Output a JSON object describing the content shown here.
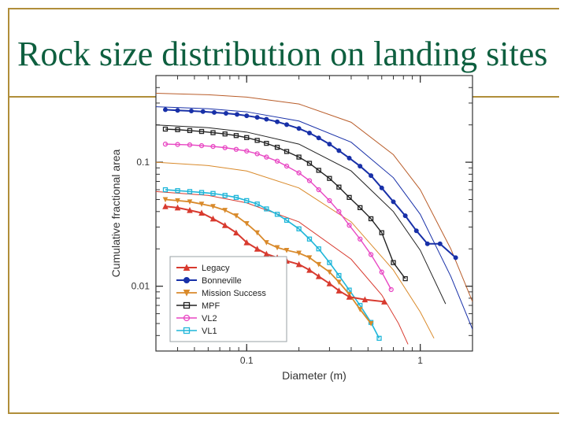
{
  "slide": {
    "title": "Rock size distribution on landing sites",
    "title_color": "#0e5f3f",
    "title_fontsize": 44,
    "rule_color": "#b08e3a",
    "background": "#ffffff"
  },
  "chart": {
    "type": "line",
    "xlabel": "Diameter (m)",
    "ylabel": "Cumulative fractional area",
    "label_fontsize": 14,
    "tick_fontsize": 12,
    "xscale": "log",
    "yscale": "log",
    "xlim": [
      0.03,
      2.0
    ],
    "ylim": [
      0.003,
      0.5
    ],
    "xticks": [
      0.1,
      1
    ],
    "yticks": [
      0.01,
      0.1
    ],
    "xtick_labels": [
      "0.1",
      "1"
    ],
    "ytick_labels": [
      "0.01",
      "0.1"
    ],
    "axis_color": "#333333",
    "grid": false,
    "background_color": "#ffffff",
    "legend": {
      "position": "lower-left-inside",
      "border_color": "#9aa0a6",
      "bg_color": "#ffffff",
      "fontsize": 11,
      "items": [
        {
          "label": "Legacy",
          "color": "#d83a2f",
          "marker": "triangle-up",
          "line_width": 2.0
        },
        {
          "label": "Bonneville",
          "color": "#1830a8",
          "marker": "circle-filled",
          "line_width": 2.0
        },
        {
          "label": "Mission Success",
          "color": "#d98a2b",
          "marker": "triangle-down",
          "line_width": 1.8
        },
        {
          "label": "MPF",
          "color": "#222222",
          "marker": "square-open",
          "line_width": 1.4
        },
        {
          "label": "VL2",
          "color": "#e847c3",
          "marker": "circle-open",
          "line_width": 1.4
        },
        {
          "label": "VL1",
          "color": "#1fb6d9",
          "marker": "square-open",
          "line_width": 1.6
        }
      ]
    },
    "smooth_curves": [
      {
        "color": "#b95d2a",
        "width": 1.0,
        "points": [
          [
            0.03,
            0.36
          ],
          [
            0.06,
            0.35
          ],
          [
            0.1,
            0.335
          ],
          [
            0.2,
            0.295
          ],
          [
            0.4,
            0.21
          ],
          [
            0.7,
            0.115
          ],
          [
            1.0,
            0.06
          ],
          [
            1.5,
            0.02
          ],
          [
            2.0,
            0.0075
          ]
        ]
      },
      {
        "color": "#1830a8",
        "width": 1.0,
        "points": [
          [
            0.03,
            0.28
          ],
          [
            0.06,
            0.27
          ],
          [
            0.1,
            0.255
          ],
          [
            0.2,
            0.215
          ],
          [
            0.4,
            0.145
          ],
          [
            0.7,
            0.075
          ],
          [
            1.0,
            0.038
          ],
          [
            1.5,
            0.012
          ],
          [
            2.0,
            0.0045
          ]
        ]
      },
      {
        "color": "#222222",
        "width": 1.0,
        "points": [
          [
            0.03,
            0.2
          ],
          [
            0.06,
            0.19
          ],
          [
            0.1,
            0.175
          ],
          [
            0.2,
            0.14
          ],
          [
            0.4,
            0.085
          ],
          [
            0.7,
            0.04
          ],
          [
            1.0,
            0.0195
          ],
          [
            1.4,
            0.0072
          ]
        ]
      },
      {
        "color": "#d98a2b",
        "width": 1.0,
        "points": [
          [
            0.03,
            0.1
          ],
          [
            0.06,
            0.094
          ],
          [
            0.1,
            0.085
          ],
          [
            0.2,
            0.062
          ],
          [
            0.4,
            0.033
          ],
          [
            0.7,
            0.0135
          ],
          [
            1.0,
            0.0062
          ],
          [
            1.2,
            0.0038
          ]
        ]
      },
      {
        "color": "#d83a2f",
        "width": 1.0,
        "points": [
          [
            0.03,
            0.058
          ],
          [
            0.06,
            0.054
          ],
          [
            0.1,
            0.047
          ],
          [
            0.2,
            0.033
          ],
          [
            0.4,
            0.0165
          ],
          [
            0.6,
            0.0085
          ],
          [
            0.75,
            0.005
          ],
          [
            0.85,
            0.0034
          ]
        ]
      }
    ],
    "series": [
      {
        "name": "Bonneville",
        "color": "#1830a8",
        "marker": "circle-filled",
        "marker_size": 5,
        "line_width": 2.0,
        "data": [
          [
            0.034,
            0.265
          ],
          [
            0.04,
            0.262
          ],
          [
            0.048,
            0.259
          ],
          [
            0.056,
            0.256
          ],
          [
            0.065,
            0.252
          ],
          [
            0.076,
            0.248
          ],
          [
            0.088,
            0.243
          ],
          [
            0.1,
            0.237
          ],
          [
            0.115,
            0.23
          ],
          [
            0.13,
            0.222
          ],
          [
            0.15,
            0.212
          ],
          [
            0.17,
            0.201
          ],
          [
            0.2,
            0.187
          ],
          [
            0.23,
            0.172
          ],
          [
            0.26,
            0.157
          ],
          [
            0.3,
            0.14
          ],
          [
            0.34,
            0.124
          ],
          [
            0.39,
            0.108
          ],
          [
            0.45,
            0.093
          ],
          [
            0.52,
            0.078
          ],
          [
            0.6,
            0.062
          ],
          [
            0.7,
            0.048
          ],
          [
            0.82,
            0.037
          ],
          [
            0.95,
            0.028
          ],
          [
            1.1,
            0.022
          ],
          [
            1.3,
            0.022
          ],
          [
            1.6,
            0.017
          ]
        ]
      },
      {
        "name": "MPF",
        "color": "#222222",
        "marker": "square-open",
        "marker_size": 5,
        "line_width": 1.4,
        "data": [
          [
            0.034,
            0.185
          ],
          [
            0.04,
            0.183
          ],
          [
            0.047,
            0.18
          ],
          [
            0.055,
            0.177
          ],
          [
            0.064,
            0.173
          ],
          [
            0.075,
            0.169
          ],
          [
            0.087,
            0.164
          ],
          [
            0.1,
            0.158
          ],
          [
            0.115,
            0.15
          ],
          [
            0.13,
            0.142
          ],
          [
            0.15,
            0.132
          ],
          [
            0.17,
            0.122
          ],
          [
            0.2,
            0.11
          ],
          [
            0.23,
            0.098
          ],
          [
            0.26,
            0.086
          ],
          [
            0.3,
            0.074
          ],
          [
            0.34,
            0.063
          ],
          [
            0.39,
            0.052
          ],
          [
            0.45,
            0.043
          ],
          [
            0.52,
            0.035
          ],
          [
            0.6,
            0.027
          ],
          [
            0.7,
            0.0155
          ],
          [
            0.82,
            0.0115
          ]
        ]
      },
      {
        "name": "VL2",
        "color": "#e847c3",
        "marker": "circle-open",
        "marker_size": 5,
        "line_width": 1.4,
        "data": [
          [
            0.034,
            0.14
          ],
          [
            0.04,
            0.139
          ],
          [
            0.047,
            0.138
          ],
          [
            0.055,
            0.136
          ],
          [
            0.064,
            0.134
          ],
          [
            0.075,
            0.131
          ],
          [
            0.087,
            0.127
          ],
          [
            0.1,
            0.123
          ],
          [
            0.115,
            0.117
          ],
          [
            0.13,
            0.11
          ],
          [
            0.15,
            0.102
          ],
          [
            0.17,
            0.093
          ],
          [
            0.2,
            0.082
          ],
          [
            0.23,
            0.071
          ],
          [
            0.26,
            0.06
          ],
          [
            0.3,
            0.049
          ],
          [
            0.34,
            0.04
          ],
          [
            0.39,
            0.031
          ],
          [
            0.45,
            0.024
          ],
          [
            0.52,
            0.018
          ],
          [
            0.6,
            0.013
          ],
          [
            0.68,
            0.0094
          ]
        ]
      },
      {
        "name": "VL1",
        "color": "#1fb6d9",
        "marker": "square-open",
        "marker_size": 5,
        "line_width": 1.6,
        "data": [
          [
            0.034,
            0.06
          ],
          [
            0.04,
            0.059
          ],
          [
            0.047,
            0.058
          ],
          [
            0.055,
            0.057
          ],
          [
            0.064,
            0.056
          ],
          [
            0.075,
            0.054
          ],
          [
            0.087,
            0.052
          ],
          [
            0.1,
            0.049
          ],
          [
            0.115,
            0.046
          ],
          [
            0.13,
            0.042
          ],
          [
            0.15,
            0.038
          ],
          [
            0.17,
            0.034
          ],
          [
            0.2,
            0.029
          ],
          [
            0.23,
            0.024
          ],
          [
            0.26,
            0.02
          ],
          [
            0.3,
            0.0155
          ],
          [
            0.34,
            0.0122
          ],
          [
            0.39,
            0.0093
          ],
          [
            0.45,
            0.007
          ],
          [
            0.52,
            0.0051
          ],
          [
            0.58,
            0.0038
          ]
        ]
      },
      {
        "name": "Mission Success",
        "color": "#d98a2b",
        "marker": "triangle-down",
        "marker_size": 5,
        "line_width": 1.8,
        "data": [
          [
            0.034,
            0.05
          ],
          [
            0.04,
            0.049
          ],
          [
            0.047,
            0.048
          ],
          [
            0.055,
            0.046
          ],
          [
            0.064,
            0.044
          ],
          [
            0.075,
            0.041
          ],
          [
            0.087,
            0.037
          ],
          [
            0.1,
            0.032
          ],
          [
            0.115,
            0.027
          ],
          [
            0.13,
            0.0225
          ],
          [
            0.15,
            0.0205
          ],
          [
            0.17,
            0.0195
          ],
          [
            0.2,
            0.0185
          ],
          [
            0.23,
            0.017
          ],
          [
            0.26,
            0.015
          ],
          [
            0.3,
            0.013
          ],
          [
            0.34,
            0.0108
          ],
          [
            0.39,
            0.0086
          ],
          [
            0.45,
            0.0065
          ],
          [
            0.52,
            0.005
          ]
        ]
      },
      {
        "name": "Legacy",
        "color": "#d83a2f",
        "marker": "triangle-up",
        "marker_size": 6,
        "line_width": 2.0,
        "data": [
          [
            0.034,
            0.044
          ],
          [
            0.04,
            0.043
          ],
          [
            0.047,
            0.041
          ],
          [
            0.055,
            0.039
          ],
          [
            0.064,
            0.035
          ],
          [
            0.075,
            0.031
          ],
          [
            0.087,
            0.027
          ],
          [
            0.1,
            0.0225
          ],
          [
            0.115,
            0.02
          ],
          [
            0.13,
            0.0182
          ],
          [
            0.15,
            0.017
          ],
          [
            0.17,
            0.016
          ],
          [
            0.2,
            0.015
          ],
          [
            0.23,
            0.0135
          ],
          [
            0.26,
            0.012
          ],
          [
            0.3,
            0.0105
          ],
          [
            0.34,
            0.0092
          ],
          [
            0.39,
            0.0082
          ],
          [
            0.48,
            0.0078
          ],
          [
            0.62,
            0.0075
          ]
        ]
      }
    ]
  }
}
